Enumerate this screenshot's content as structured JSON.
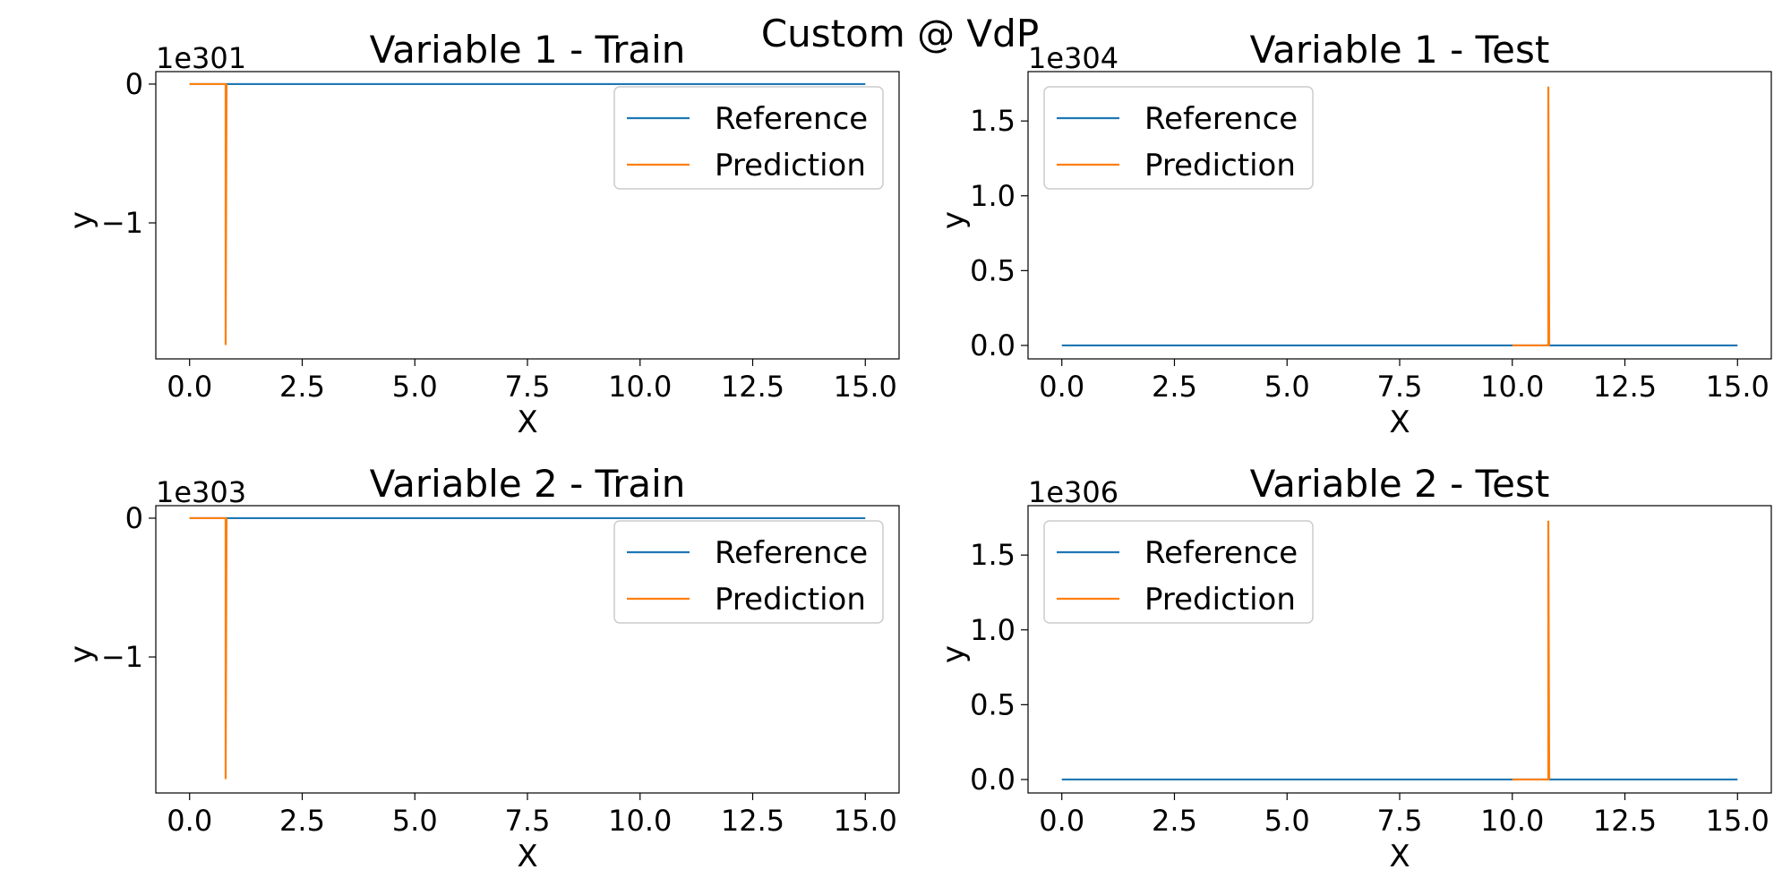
{
  "figure": {
    "suptitle": "Custom @ VdP"
  },
  "colors": {
    "reference": "#1f77b4",
    "prediction": "#ff7f0e",
    "axes": "#000000",
    "legend_border": "#cccccc"
  },
  "chart_data": [
    {
      "type": "line",
      "title": "Variable 1 - Train",
      "xlabel": "X",
      "ylabel": "y",
      "offset_text": "1e301",
      "xlim": [
        -0.75,
        15.75
      ],
      "ylim": [
        -1.98,
        0.09
      ],
      "xticks": [
        0,
        2.5,
        5,
        7.5,
        10,
        12.5,
        15
      ],
      "xtick_labels": [
        "0.0",
        "2.5",
        "5.0",
        "7.5",
        "10.0",
        "12.5",
        "15.0"
      ],
      "yticks": [
        0,
        -1
      ],
      "ytick_labels": [
        "0",
        "−1"
      ],
      "legend_position": "upper right",
      "series": [
        {
          "name": "Reference",
          "color": "#1f77b4",
          "points": [
            [
              0,
              0
            ],
            [
              15,
              0
            ]
          ]
        },
        {
          "name": "Prediction",
          "color": "#ff7f0e",
          "points": [
            [
              0,
              0
            ],
            [
              0.8,
              0
            ],
            [
              0.8,
              -1.88
            ],
            [
              0.82,
              0
            ]
          ]
        }
      ]
    },
    {
      "type": "line",
      "title": "Variable 1 - Test",
      "xlabel": "X",
      "ylabel": "y",
      "offset_text": "1e304",
      "xlim": [
        -0.75,
        15.75
      ],
      "ylim": [
        -0.09,
        1.83
      ],
      "xticks": [
        0,
        2.5,
        5,
        7.5,
        10,
        12.5,
        15
      ],
      "xtick_labels": [
        "0.0",
        "2.5",
        "5.0",
        "7.5",
        "10.0",
        "12.5",
        "15.0"
      ],
      "yticks": [
        0,
        0.5,
        1.0,
        1.5
      ],
      "ytick_labels": [
        "0.0",
        "0.5",
        "1.0",
        "1.5"
      ],
      "legend_position": "upper left",
      "series": [
        {
          "name": "Reference",
          "color": "#1f77b4",
          "points": [
            [
              0,
              0
            ],
            [
              15,
              0
            ]
          ]
        },
        {
          "name": "Prediction",
          "color": "#ff7f0e",
          "points": [
            [
              10,
              0
            ],
            [
              10.8,
              0
            ],
            [
              10.8,
              1.73
            ],
            [
              10.82,
              0
            ]
          ]
        }
      ]
    },
    {
      "type": "line",
      "title": "Variable 2 - Train",
      "xlabel": "X",
      "ylabel": "y",
      "offset_text": "1e303",
      "xlim": [
        -0.75,
        15.75
      ],
      "ylim": [
        -1.98,
        0.09
      ],
      "xticks": [
        0,
        2.5,
        5,
        7.5,
        10,
        12.5,
        15
      ],
      "xtick_labels": [
        "0.0",
        "2.5",
        "5.0",
        "7.5",
        "10.0",
        "12.5",
        "15.0"
      ],
      "yticks": [
        0,
        -1
      ],
      "ytick_labels": [
        "0",
        "−1"
      ],
      "legend_position": "upper right",
      "series": [
        {
          "name": "Reference",
          "color": "#1f77b4",
          "points": [
            [
              0,
              0
            ],
            [
              15,
              0
            ]
          ]
        },
        {
          "name": "Prediction",
          "color": "#ff7f0e",
          "points": [
            [
              0,
              0
            ],
            [
              0.8,
              0
            ],
            [
              0.8,
              -1.88
            ],
            [
              0.82,
              0
            ]
          ]
        }
      ]
    },
    {
      "type": "line",
      "title": "Variable 2 - Test",
      "xlabel": "X",
      "ylabel": "y",
      "offset_text": "1e306",
      "xlim": [
        -0.75,
        15.75
      ],
      "ylim": [
        -0.09,
        1.83
      ],
      "xticks": [
        0,
        2.5,
        5,
        7.5,
        10,
        12.5,
        15
      ],
      "xtick_labels": [
        "0.0",
        "2.5",
        "5.0",
        "7.5",
        "10.0",
        "12.5",
        "15.0"
      ],
      "yticks": [
        0,
        0.5,
        1.0,
        1.5
      ],
      "ytick_labels": [
        "0.0",
        "0.5",
        "1.0",
        "1.5"
      ],
      "legend_position": "upper left",
      "series": [
        {
          "name": "Reference",
          "color": "#1f77b4",
          "points": [
            [
              0,
              0
            ],
            [
              15,
              0
            ]
          ]
        },
        {
          "name": "Prediction",
          "color": "#ff7f0e",
          "points": [
            [
              10,
              0
            ],
            [
              10.8,
              0
            ],
            [
              10.8,
              1.73
            ],
            [
              10.82,
              0
            ]
          ]
        }
      ]
    }
  ]
}
